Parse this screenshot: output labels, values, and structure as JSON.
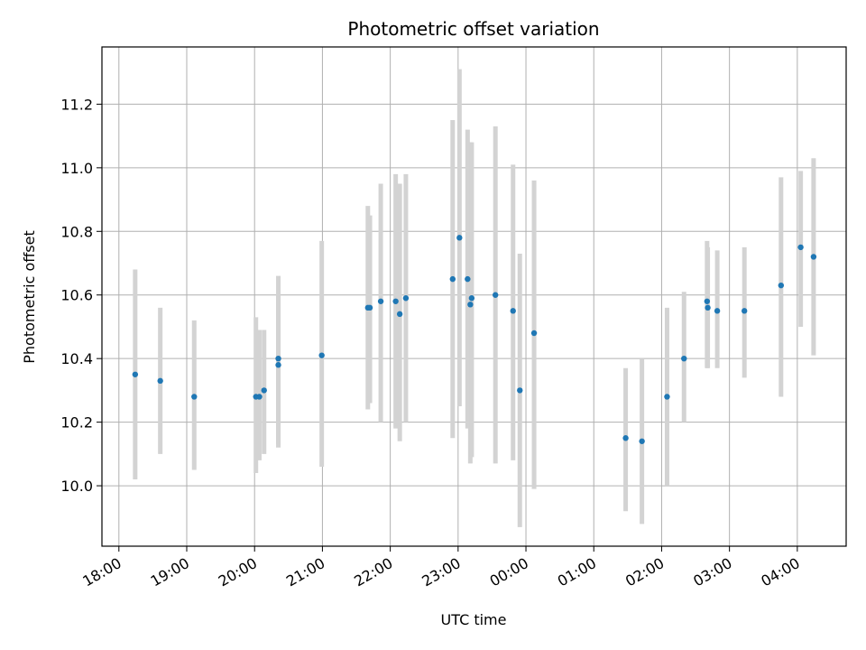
{
  "chart_data": {
    "type": "scatter",
    "title": "Photometric offset variation",
    "xlabel": "UTC time",
    "ylabel": "Photometric offset",
    "x_unit": "hours",
    "x_ticks": [
      {
        "value": 18,
        "label": "18:00"
      },
      {
        "value": 19,
        "label": "19:00"
      },
      {
        "value": 20,
        "label": "20:00"
      },
      {
        "value": 21,
        "label": "21:00"
      },
      {
        "value": 22,
        "label": "22:00"
      },
      {
        "value": 23,
        "label": "23:00"
      },
      {
        "value": 24,
        "label": "00:00"
      },
      {
        "value": 25,
        "label": "01:00"
      },
      {
        "value": 26,
        "label": "02:00"
      },
      {
        "value": 27,
        "label": "03:00"
      },
      {
        "value": 28,
        "label": "04:00"
      }
    ],
    "y_ticks": [
      {
        "value": 10.0,
        "label": "10.0"
      },
      {
        "value": 10.2,
        "label": "10.2"
      },
      {
        "value": 10.4,
        "label": "10.4"
      },
      {
        "value": 10.6,
        "label": "10.6"
      },
      {
        "value": 10.8,
        "label": "10.8"
      },
      {
        "value": 11.0,
        "label": "11.0"
      },
      {
        "value": 11.2,
        "label": "11.2"
      }
    ],
    "xlim": [
      17.75,
      28.72
    ],
    "ylim": [
      9.81,
      11.38
    ],
    "grid": true,
    "point_color": "#1f77b4",
    "errorbar_color": "#d3d3d3",
    "points": [
      {
        "x": 18.24,
        "y": 10.35,
        "lo": 10.02,
        "hi": 10.68
      },
      {
        "x": 18.61,
        "y": 10.33,
        "lo": 10.1,
        "hi": 10.56
      },
      {
        "x": 19.11,
        "y": 10.28,
        "lo": 10.05,
        "hi": 10.52
      },
      {
        "x": 20.02,
        "y": 10.28,
        "lo": 10.04,
        "hi": 10.53
      },
      {
        "x": 20.07,
        "y": 10.28,
        "lo": 10.08,
        "hi": 10.49
      },
      {
        "x": 20.14,
        "y": 10.3,
        "lo": 10.1,
        "hi": 10.49
      },
      {
        "x": 20.35,
        "y": 10.38,
        "lo": 10.12,
        "hi": 10.6
      },
      {
        "x": 20.35,
        "y": 10.4,
        "lo": 10.13,
        "hi": 10.66
      },
      {
        "x": 20.99,
        "y": 10.41,
        "lo": 10.06,
        "hi": 10.77
      },
      {
        "x": 21.67,
        "y": 10.56,
        "lo": 10.24,
        "hi": 10.88
      },
      {
        "x": 21.7,
        "y": 10.56,
        "lo": 10.26,
        "hi": 10.85
      },
      {
        "x": 21.86,
        "y": 10.58,
        "lo": 10.2,
        "hi": 10.95
      },
      {
        "x": 22.08,
        "y": 10.58,
        "lo": 10.18,
        "hi": 10.98
      },
      {
        "x": 22.14,
        "y": 10.54,
        "lo": 10.14,
        "hi": 10.95
      },
      {
        "x": 22.23,
        "y": 10.59,
        "lo": 10.2,
        "hi": 10.98
      },
      {
        "x": 22.92,
        "y": 10.65,
        "lo": 10.15,
        "hi": 11.15
      },
      {
        "x": 23.02,
        "y": 10.78,
        "lo": 10.25,
        "hi": 11.31
      },
      {
        "x": 23.14,
        "y": 10.65,
        "lo": 10.18,
        "hi": 11.12
      },
      {
        "x": 23.18,
        "y": 10.57,
        "lo": 10.07,
        "hi": 11.08
      },
      {
        "x": 23.2,
        "y": 10.59,
        "lo": 10.09,
        "hi": 11.08
      },
      {
        "x": 23.55,
        "y": 10.6,
        "lo": 10.07,
        "hi": 11.13
      },
      {
        "x": 23.81,
        "y": 10.55,
        "lo": 10.08,
        "hi": 11.01
      },
      {
        "x": 23.91,
        "y": 10.3,
        "lo": 9.87,
        "hi": 10.73
      },
      {
        "x": 24.12,
        "y": 10.48,
        "lo": 9.99,
        "hi": 10.96
      },
      {
        "x": 25.47,
        "y": 10.15,
        "lo": 9.92,
        "hi": 10.37
      },
      {
        "x": 25.71,
        "y": 10.14,
        "lo": 9.88,
        "hi": 10.4
      },
      {
        "x": 26.08,
        "y": 10.28,
        "lo": 10.0,
        "hi": 10.56
      },
      {
        "x": 26.33,
        "y": 10.4,
        "lo": 10.2,
        "hi": 10.61
      },
      {
        "x": 26.67,
        "y": 10.58,
        "lo": 10.37,
        "hi": 10.77
      },
      {
        "x": 26.68,
        "y": 10.56,
        "lo": 10.37,
        "hi": 10.75
      },
      {
        "x": 26.82,
        "y": 10.55,
        "lo": 10.37,
        "hi": 10.74
      },
      {
        "x": 27.22,
        "y": 10.55,
        "lo": 10.34,
        "hi": 10.75
      },
      {
        "x": 27.76,
        "y": 10.63,
        "lo": 10.28,
        "hi": 10.97
      },
      {
        "x": 28.05,
        "y": 10.75,
        "lo": 10.5,
        "hi": 10.99
      },
      {
        "x": 28.24,
        "y": 10.72,
        "lo": 10.41,
        "hi": 11.03
      }
    ]
  }
}
